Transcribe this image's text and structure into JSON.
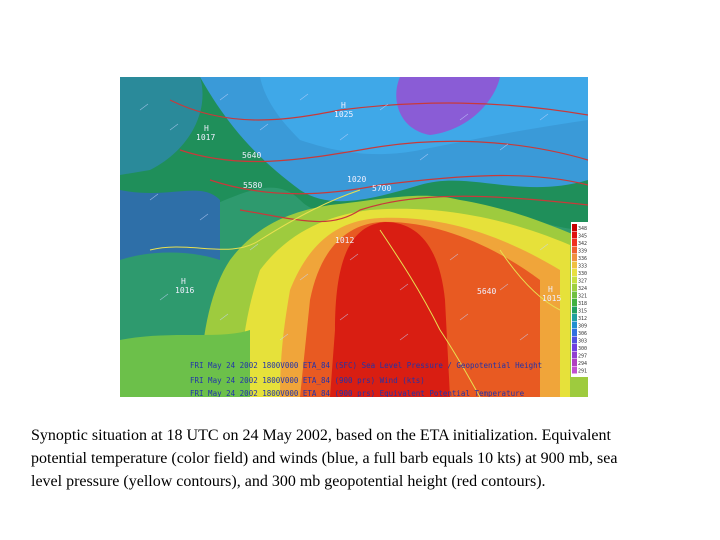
{
  "figure": {
    "map_labels": [
      "H",
      "1025",
      "H",
      "1017",
      "5640",
      "5580",
      "1020",
      "5700",
      "1012",
      "H",
      "1016",
      "5640",
      "H",
      "1015"
    ],
    "footer_lines": [
      "FRI May 24 2002 1800V000 ETA_84 (SFC) Sea Level Pressure / Geopotential Height",
      "FRI May 24 2002 1800V000 ETA_84 (900 prs) Wind (kts)",
      "FRI May 24 2002 1800V000 ETA_84 (900 prs) Equivalent Potential Temperature"
    ],
    "legend_labels": [
      "348",
      "345",
      "342",
      "339",
      "336",
      "333",
      "330",
      "327",
      "324",
      "321",
      "318",
      "315",
      "312",
      "309",
      "306",
      "303",
      "300",
      "297",
      "294",
      "291"
    ]
  },
  "caption": {
    "lines": [
      "Synoptic situation at 18 UTC on 24 May 2002, based on the ETA initialization. Equivalent",
      "potential temperature (color field) and winds (blue, a full barb equals 10 kts) at 900 mb, sea",
      "level pressure (yellow contours), and 300 mb geopotential height (red contours)."
    ]
  }
}
